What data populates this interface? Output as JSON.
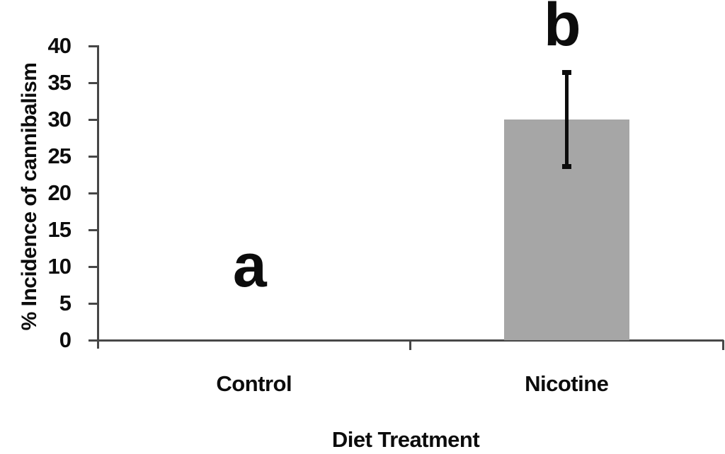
{
  "chart_data": {
    "type": "bar",
    "title": "",
    "xlabel": "Diet Treatment",
    "ylabel": "% Incidence of cannibalism",
    "categories": [
      "Control",
      "Nicotine"
    ],
    "values": [
      0,
      30
    ],
    "error_bars": [
      null,
      {
        "low": 23.7,
        "high": 36.4
      }
    ],
    "sig_letters": [
      {
        "label": "a",
        "y": 10.1
      },
      {
        "label": "b",
        "y": 42.9
      }
    ],
    "ylim": [
      0,
      40
    ],
    "ytick_step": 5,
    "yticks": [
      0,
      5,
      10,
      15,
      20,
      25,
      30,
      35,
      40
    ],
    "grid": false,
    "legend": null,
    "colors": {
      "bar": "#a6a6a6",
      "axis": "#474747",
      "text": "#0c0c0c",
      "error_bar": "#0d0d0d",
      "background": "#ffffff"
    }
  }
}
